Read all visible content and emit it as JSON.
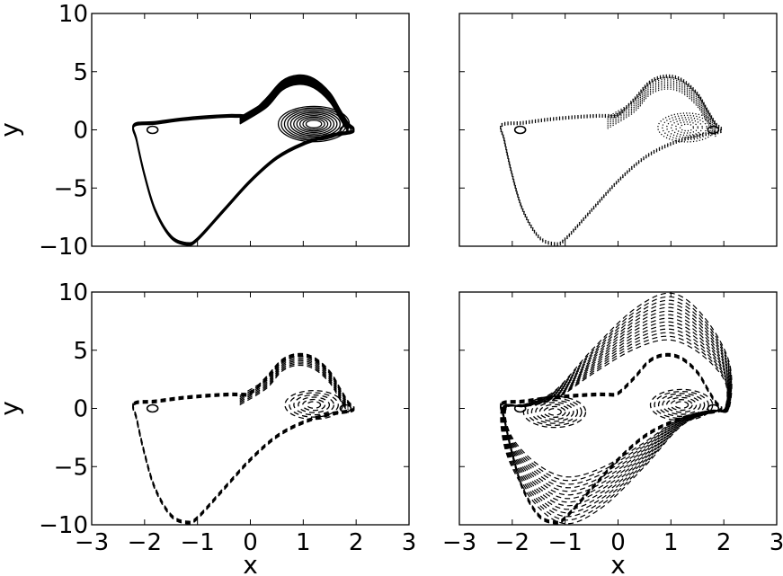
{
  "chart_data": [
    {
      "type": "line",
      "panel": "top-left",
      "style": "solid",
      "xlim": [
        -3,
        3
      ],
      "ylim": [
        -10,
        10
      ],
      "xticks": [
        -3,
        -2,
        -1,
        0,
        1,
        2,
        3
      ],
      "yticks": [
        -10,
        -5,
        0,
        5,
        10
      ],
      "xlabel": "",
      "ylabel": "y",
      "show_xtick_labels": false,
      "show_ytick_labels": true,
      "grid": false,
      "series": [
        {
          "loop": [
            [
              -2.2,
              0.3
            ],
            [
              -1.8,
              0.5
            ],
            [
              -1.3,
              0.8
            ],
            [
              -0.8,
              1.0
            ],
            [
              -0.4,
              1.1
            ],
            [
              -0.2,
              1.1
            ],
            [
              0,
              1.2
            ],
            [
              0.3,
              2.5
            ],
            [
              0.6,
              4.0
            ],
            [
              0.9,
              4.5
            ],
            [
              1.2,
              4.2
            ],
            [
              1.5,
              3.0
            ],
            [
              1.7,
              1.5
            ],
            [
              1.85,
              0.4
            ],
            [
              1.95,
              0
            ],
            [
              1.9,
              -0.3
            ],
            [
              1.5,
              -0.6
            ],
            [
              1.0,
              -1.3
            ],
            [
              0.5,
              -2.5
            ],
            [
              0,
              -4.5
            ],
            [
              -0.5,
              -7.0
            ],
            [
              -1.0,
              -9.5
            ],
            [
              -1.2,
              -9.9
            ],
            [
              -1.5,
              -9.3
            ],
            [
              -1.8,
              -7.0
            ],
            [
              -2.0,
              -4.0
            ],
            [
              -2.15,
              -1.0
            ],
            [
              -2.2,
              0.3
            ]
          ],
          "band": [
            0,
            0.2
          ],
          "ribbon": [
            [
              -0.2,
              1.1
            ],
            [
              0.3,
              2.5
            ],
            [
              0.6,
              4.0
            ],
            [
              0.9,
              4.5
            ],
            [
              1.2,
              4.2
            ],
            [
              1.5,
              3.0
            ],
            [
              1.7,
              1.5
            ],
            [
              1.85,
              0.4
            ]
          ],
          "ribbon_band": [
            0,
            0.6
          ],
          "ribbon_count": 12,
          "spiral_center": [
            1.2,
            0.5
          ],
          "spiral_radius": [
            0.35,
            1.6
          ],
          "spiral_count": 10,
          "small_loops": [
            [
              -1.85,
              0
            ],
            [
              1.8,
              0
            ]
          ]
        }
      ]
    },
    {
      "type": "line",
      "panel": "top-right",
      "style": "dotted",
      "xlim": [
        -3,
        3
      ],
      "ylim": [
        -10,
        10
      ],
      "xticks": [
        -3,
        -2,
        -1,
        0,
        1,
        2,
        3
      ],
      "yticks": [
        -10,
        -5,
        0,
        5,
        10
      ],
      "xlabel": "",
      "ylabel": "",
      "show_xtick_labels": false,
      "show_ytick_labels": false,
      "grid": false,
      "series": [
        {
          "loop": [
            [
              -2.2,
              0.3
            ],
            [
              -1.8,
              0.5
            ],
            [
              -1.3,
              0.8
            ],
            [
              -0.8,
              1.0
            ],
            [
              -0.4,
              1.1
            ],
            [
              -0.2,
              1.1
            ],
            [
              0,
              1.2
            ],
            [
              0.3,
              2.5
            ],
            [
              0.6,
              4.0
            ],
            [
              0.9,
              4.5
            ],
            [
              1.2,
              4.2
            ],
            [
              1.5,
              3.0
            ],
            [
              1.7,
              1.5
            ],
            [
              1.85,
              0.4
            ],
            [
              1.95,
              0
            ],
            [
              1.9,
              -0.3
            ],
            [
              1.5,
              -0.6
            ],
            [
              1.0,
              -1.3
            ],
            [
              0.5,
              -2.5
            ],
            [
              0,
              -4.5
            ],
            [
              -0.5,
              -7.0
            ],
            [
              -1.0,
              -9.5
            ],
            [
              -1.2,
              -9.9
            ],
            [
              -1.5,
              -9.3
            ],
            [
              -1.8,
              -7.0
            ],
            [
              -2.0,
              -4.0
            ],
            [
              -2.15,
              -1.0
            ],
            [
              -2.2,
              0.3
            ]
          ],
          "band": [
            0,
            0.2
          ],
          "ribbon": [
            [
              -0.2,
              1.1
            ],
            [
              0.3,
              2.5
            ],
            [
              0.6,
              4.0
            ],
            [
              0.9,
              4.5
            ],
            [
              1.2,
              4.2
            ],
            [
              1.5,
              3.0
            ],
            [
              1.7,
              1.5
            ],
            [
              1.85,
              0.4
            ]
          ],
          "ribbon_band": [
            0,
            1.0
          ],
          "ribbon_count": 8,
          "spiral_center": [
            1.3,
            0.2
          ],
          "spiral_radius": [
            0.3,
            1.3
          ],
          "spiral_count": 6,
          "small_loops": [
            [
              -1.85,
              0
            ],
            [
              1.8,
              0
            ]
          ]
        }
      ]
    },
    {
      "type": "line",
      "panel": "bottom-left",
      "style": "dashed",
      "xlim": [
        -3,
        3
      ],
      "ylim": [
        -10,
        10
      ],
      "xticks": [
        -3,
        -2,
        -1,
        0,
        1,
        2,
        3
      ],
      "yticks": [
        -10,
        -5,
        0,
        5,
        10
      ],
      "xlabel": "x",
      "ylabel": "y",
      "show_xtick_labels": true,
      "show_ytick_labels": true,
      "grid": false,
      "series": [
        {
          "loop": [
            [
              -2.2,
              0.3
            ],
            [
              -1.8,
              0.5
            ],
            [
              -1.3,
              0.8
            ],
            [
              -0.8,
              1.0
            ],
            [
              -0.4,
              1.1
            ],
            [
              -0.2,
              1.1
            ],
            [
              0,
              1.2
            ],
            [
              0.3,
              2.5
            ],
            [
              0.6,
              4.0
            ],
            [
              0.9,
              4.5
            ],
            [
              1.2,
              4.2
            ],
            [
              1.5,
              3.0
            ],
            [
              1.7,
              1.5
            ],
            [
              1.85,
              0.4
            ],
            [
              1.95,
              0
            ],
            [
              1.9,
              -0.3
            ],
            [
              1.5,
              -0.6
            ],
            [
              1.0,
              -1.3
            ],
            [
              0.5,
              -2.5
            ],
            [
              0,
              -4.5
            ],
            [
              -0.5,
              -7.0
            ],
            [
              -1.0,
              -9.5
            ],
            [
              -1.2,
              -9.9
            ],
            [
              -1.5,
              -9.3
            ],
            [
              -1.8,
              -7.0
            ],
            [
              -2.0,
              -4.0
            ],
            [
              -2.15,
              -1.0
            ],
            [
              -2.2,
              0.3
            ]
          ],
          "band": [
            0,
            0.2
          ],
          "ribbon": [
            [
              -0.2,
              1.1
            ],
            [
              0.3,
              2.5
            ],
            [
              0.6,
              4.0
            ],
            [
              0.9,
              4.5
            ],
            [
              1.2,
              4.2
            ],
            [
              1.5,
              3.0
            ],
            [
              1.7,
              1.5
            ],
            [
              1.85,
              0.4
            ]
          ],
          "ribbon_band": [
            0,
            0.8
          ],
          "ribbon_count": 7,
          "spiral_center": [
            1.2,
            0.3
          ],
          "spiral_radius": [
            0.3,
            1.3
          ],
          "spiral_count": 6,
          "small_loops": [
            [
              -1.85,
              0
            ],
            [
              1.8,
              0
            ]
          ]
        }
      ]
    },
    {
      "type": "line",
      "panel": "bottom-right",
      "style": "dashed",
      "xlim": [
        -3,
        3
      ],
      "ylim": [
        -10,
        10
      ],
      "xticks": [
        -3,
        -2,
        -1,
        0,
        1,
        2,
        3
      ],
      "yticks": [
        -10,
        -5,
        0,
        5,
        10
      ],
      "xlabel": "x",
      "ylabel": "",
      "show_xtick_labels": true,
      "show_ytick_labels": false,
      "grid": false,
      "series": [
        {
          "loop": [
            [
              -2.2,
              0.3
            ],
            [
              -1.8,
              0.5
            ],
            [
              -1.3,
              0.8
            ],
            [
              -0.8,
              1.0
            ],
            [
              -0.4,
              1.1
            ],
            [
              -0.2,
              1.1
            ],
            [
              0,
              1.2
            ],
            [
              0.3,
              2.5
            ],
            [
              0.6,
              4.0
            ],
            [
              0.9,
              4.5
            ],
            [
              1.2,
              4.2
            ],
            [
              1.5,
              3.0
            ],
            [
              1.7,
              1.5
            ],
            [
              1.85,
              0.4
            ],
            [
              1.95,
              0
            ],
            [
              1.9,
              -0.3
            ],
            [
              1.5,
              -0.6
            ],
            [
              1.0,
              -1.3
            ],
            [
              0.5,
              -2.5
            ],
            [
              0,
              -4.5
            ],
            [
              -0.5,
              -7.0
            ],
            [
              -1.0,
              -9.5
            ],
            [
              -1.2,
              -9.9
            ],
            [
              -1.5,
              -9.3
            ],
            [
              -1.8,
              -7.0
            ],
            [
              -2.0,
              -4.0
            ],
            [
              -2.15,
              -1.0
            ],
            [
              -2.2,
              0.3
            ]
          ],
          "band": [
            0,
            0.2
          ],
          "ribbon": [],
          "ribbon_band": [
            0,
            0
          ],
          "ribbon_count": 0,
          "spiral_center": [
            1.2,
            0.3
          ],
          "spiral_radius": [
            0.3,
            1.4
          ],
          "spiral_count": 7,
          "small_loops": [
            [
              -1.85,
              0
            ],
            [
              1.8,
              0
            ]
          ]
        },
        {
          "symmetric_loop": [
            [
              -2.2,
              0
            ],
            [
              -2.1,
              -4
            ],
            [
              -1.6,
              -8
            ],
            [
              -1.0,
              -9.9
            ],
            [
              -0.3,
              -8.5
            ],
            [
              0.5,
              -5
            ],
            [
              1.2,
              -1.5
            ],
            [
              1.8,
              -0.3
            ],
            [
              2.1,
              0
            ],
            [
              2.1,
              4
            ],
            [
              1.6,
              8
            ],
            [
              1.0,
              9.9
            ],
            [
              0.3,
              8.5
            ],
            [
              -0.5,
              5
            ],
            [
              -1.2,
              1.5
            ],
            [
              -1.8,
              0.3
            ],
            [
              -2.2,
              0
            ]
          ],
          "band": [
            0,
            0.9
          ],
          "count": 14,
          "spiral_center": [
            -1.2,
            -0.3
          ],
          "spiral_radius": [
            0.3,
            1.4
          ],
          "spiral_count": 7
        }
      ]
    }
  ]
}
